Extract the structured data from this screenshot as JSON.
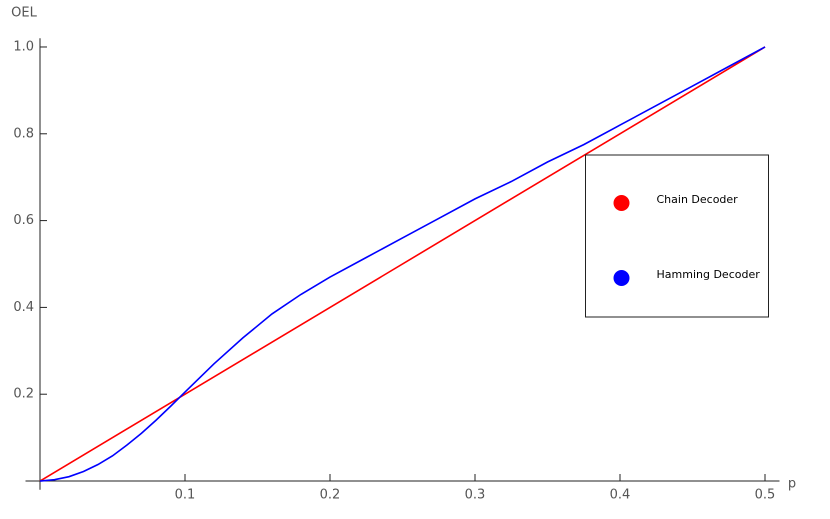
{
  "chart_data": {
    "type": "line",
    "x_label": "p",
    "y_label": "OEL",
    "xlim": [
      -0.01,
      0.51
    ],
    "ylim": [
      -0.02,
      1.02
    ],
    "xticks": [
      0.1,
      0.2,
      0.3,
      0.4,
      0.5
    ],
    "yticks": [
      0.2,
      0.4,
      0.6,
      0.8,
      {
        "value": 1,
        "label": "1.0"
      }
    ],
    "legend": "right",
    "series": [
      {
        "name": "Chain Decoder",
        "color": "#ff0000",
        "x": [
          0,
          0.5
        ],
        "values": [
          0,
          1
        ]
      },
      {
        "name": "Hamming Decoder",
        "color": "#0000ff",
        "x": [
          0,
          0.01,
          0.02,
          0.03,
          0.04,
          0.05,
          0.06,
          0.07,
          0.08,
          0.09,
          0.1,
          0.12,
          0.14,
          0.16,
          0.18,
          0.2,
          0.225,
          0.25,
          0.275,
          0.3,
          0.325,
          0.35,
          0.375,
          0.4,
          0.425,
          0.45,
          0.475,
          0.5
        ],
        "values": [
          0,
          0.003,
          0.01,
          0.022,
          0.038,
          0.058,
          0.083,
          0.11,
          0.14,
          0.172,
          0.205,
          0.27,
          0.33,
          0.385,
          0.43,
          0.47,
          0.515,
          0.56,
          0.605,
          0.65,
          0.69,
          0.735,
          0.775,
          0.82,
          0.865,
          0.91,
          0.955,
          1
        ]
      }
    ]
  }
}
